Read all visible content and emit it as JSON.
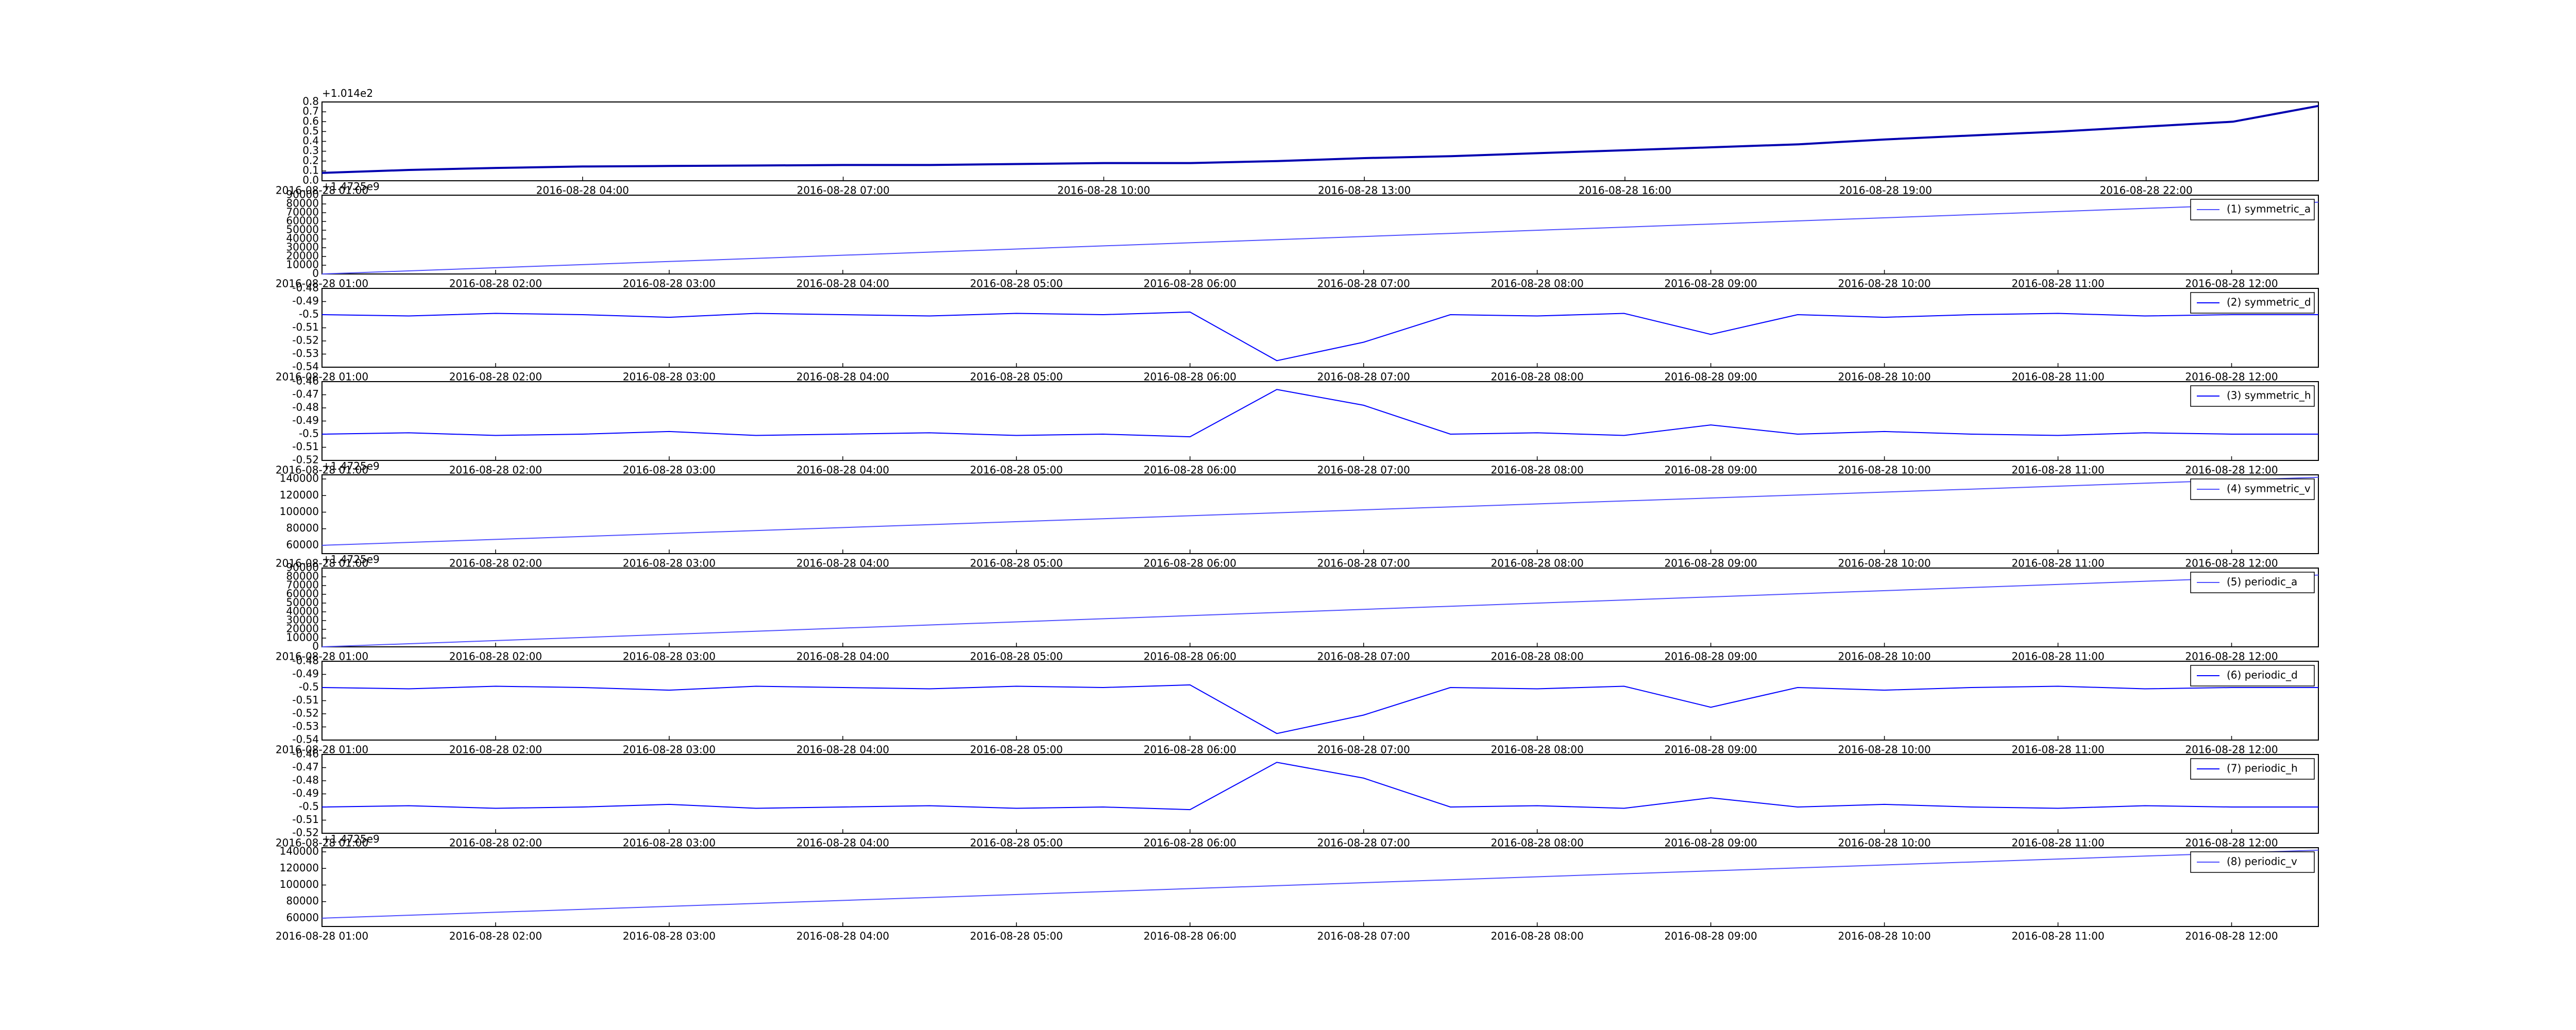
{
  "chart_data": [
    {
      "type": "line",
      "offset_text": "+1.014e2",
      "color": "#0000b0",
      "x": [
        "2016-08-28 01:00",
        "2016-08-28 02:00",
        "2016-08-28 03:00",
        "2016-08-28 04:00",
        "2016-08-28 05:00",
        "2016-08-28 06:00",
        "2016-08-28 07:00",
        "2016-08-28 08:00",
        "2016-08-28 09:00",
        "2016-08-28 10:00",
        "2016-08-28 11:00",
        "2016-08-28 12:00",
        "2016-08-28 13:00",
        "2016-08-28 14:00",
        "2016-08-28 15:00",
        "2016-08-28 16:00",
        "2016-08-28 17:00",
        "2016-08-28 18:00",
        "2016-08-28 19:00",
        "2016-08-28 20:00",
        "2016-08-28 21:00",
        "2016-08-28 22:00",
        "2016-08-28 23:00",
        "2016-08-28 23:59"
      ],
      "values": [
        0.08,
        0.11,
        0.13,
        0.145,
        0.15,
        0.155,
        0.16,
        0.16,
        0.17,
        0.18,
        0.18,
        0.2,
        0.23,
        0.25,
        0.28,
        0.31,
        0.34,
        0.37,
        0.42,
        0.46,
        0.5,
        0.55,
        0.6,
        0.76
      ],
      "xlim": [
        "2016-08-28 01:00",
        "2016-08-28 23:59"
      ],
      "xticks": [
        "2016-08-28 01:00",
        "2016-08-28 04:00",
        "2016-08-28 07:00",
        "2016-08-28 10:00",
        "2016-08-28 13:00",
        "2016-08-28 16:00",
        "2016-08-28 19:00",
        "2016-08-28 22:00"
      ],
      "ylim": [
        0,
        0.8
      ],
      "yticks": [
        {
          "value": 0,
          "label": "0.0"
        },
        0.1,
        0.2,
        0.3,
        0.4,
        0.5,
        0.6,
        0.7,
        0.8
      ]
    },
    {
      "type": "line",
      "offset_text": "+1.4725e9",
      "legend": "upper right",
      "x": [
        "2016-08-28 01:00",
        "2016-08-28 12:30"
      ],
      "series": [
        {
          "name": "(1) symmetric_a",
          "color": "#5050ff",
          "values": [
            0,
            82000
          ]
        }
      ],
      "xlim": [
        "2016-08-28 01:00",
        "2016-08-28 12:30"
      ],
      "xticks": [
        "2016-08-28 01:00",
        "2016-08-28 02:00",
        "2016-08-28 03:00",
        "2016-08-28 04:00",
        "2016-08-28 05:00",
        "2016-08-28 06:00",
        "2016-08-28 07:00",
        "2016-08-28 08:00",
        "2016-08-28 09:00",
        "2016-08-28 10:00",
        "2016-08-28 11:00",
        "2016-08-28 12:00"
      ],
      "ylim": [
        0,
        90000
      ],
      "yticks": [
        0,
        10000,
        20000,
        30000,
        40000,
        50000,
        60000,
        70000,
        80000,
        90000
      ]
    },
    {
      "type": "line",
      "legend": "upper right",
      "x": [
        "2016-08-28 01:00",
        "2016-08-28 01:30",
        "2016-08-28 02:00",
        "2016-08-28 02:30",
        "2016-08-28 03:00",
        "2016-08-28 03:30",
        "2016-08-28 04:00",
        "2016-08-28 04:30",
        "2016-08-28 05:00",
        "2016-08-28 05:30",
        "2016-08-28 06:00",
        "2016-08-28 06:30",
        "2016-08-28 07:00",
        "2016-08-28 07:30",
        "2016-08-28 08:00",
        "2016-08-28 08:30",
        "2016-08-28 09:00",
        "2016-08-28 09:30",
        "2016-08-28 10:00",
        "2016-08-28 10:30",
        "2016-08-28 11:00",
        "2016-08-28 11:30",
        "2016-08-28 12:00",
        "2016-08-28 12:30"
      ],
      "series": [
        {
          "name": "(2) symmetric_d",
          "color": "#0000ff",
          "values": [
            -0.5,
            -0.501,
            -0.499,
            -0.5,
            -0.502,
            -0.499,
            -0.5,
            -0.501,
            -0.499,
            -0.5,
            -0.498,
            -0.535,
            -0.521,
            -0.5,
            -0.501,
            -0.499,
            -0.515,
            -0.5,
            -0.502,
            -0.5,
            -0.499,
            -0.501,
            -0.5,
            -0.5
          ]
        }
      ],
      "xlim": [
        "2016-08-28 01:00",
        "2016-08-28 12:30"
      ],
      "xticks": [
        "2016-08-28 01:00",
        "2016-08-28 02:00",
        "2016-08-28 03:00",
        "2016-08-28 04:00",
        "2016-08-28 05:00",
        "2016-08-28 06:00",
        "2016-08-28 07:00",
        "2016-08-28 08:00",
        "2016-08-28 09:00",
        "2016-08-28 10:00",
        "2016-08-28 11:00",
        "2016-08-28 12:00"
      ],
      "ylim": [
        -0.54,
        -0.48
      ],
      "yticks": [
        -0.54,
        -0.53,
        -0.52,
        -0.51,
        -0.5,
        -0.49,
        -0.48
      ]
    },
    {
      "type": "line",
      "legend": "upper right",
      "x": [
        "2016-08-28 01:00",
        "2016-08-28 01:30",
        "2016-08-28 02:00",
        "2016-08-28 02:30",
        "2016-08-28 03:00",
        "2016-08-28 03:30",
        "2016-08-28 04:00",
        "2016-08-28 04:30",
        "2016-08-28 05:00",
        "2016-08-28 05:30",
        "2016-08-28 06:00",
        "2016-08-28 06:30",
        "2016-08-28 07:00",
        "2016-08-28 07:30",
        "2016-08-28 08:00",
        "2016-08-28 08:30",
        "2016-08-28 09:00",
        "2016-08-28 09:30",
        "2016-08-28 10:00",
        "2016-08-28 10:30",
        "2016-08-28 11:00",
        "2016-08-28 11:30",
        "2016-08-28 12:00",
        "2016-08-28 12:30"
      ],
      "series": [
        {
          "name": "(3) symmetric_h",
          "color": "#0000ff",
          "values": [
            -0.5,
            -0.499,
            -0.501,
            -0.5,
            -0.498,
            -0.501,
            -0.5,
            -0.499,
            -0.501,
            -0.5,
            -0.502,
            -0.466,
            -0.478,
            -0.5,
            -0.499,
            -0.501,
            -0.493,
            -0.5,
            -0.498,
            -0.5,
            -0.501,
            -0.499,
            -0.5,
            -0.5
          ]
        }
      ],
      "xlim": [
        "2016-08-28 01:00",
        "2016-08-28 12:30"
      ],
      "xticks": [
        "2016-08-28 01:00",
        "2016-08-28 02:00",
        "2016-08-28 03:00",
        "2016-08-28 04:00",
        "2016-08-28 05:00",
        "2016-08-28 06:00",
        "2016-08-28 07:00",
        "2016-08-28 08:00",
        "2016-08-28 09:00",
        "2016-08-28 10:00",
        "2016-08-28 11:00",
        "2016-08-28 12:00"
      ],
      "ylim": [
        -0.52,
        -0.46
      ],
      "yticks": [
        -0.52,
        -0.51,
        -0.5,
        -0.49,
        -0.48,
        -0.47,
        -0.46
      ]
    },
    {
      "type": "line",
      "offset_text": "+1.4725e9",
      "legend": "upper right",
      "x": [
        "2016-08-28 01:00",
        "2016-08-28 12:30"
      ],
      "series": [
        {
          "name": "(4) symmetric_v",
          "color": "#5050ff",
          "values": [
            60000,
            142000
          ]
        }
      ],
      "xlim": [
        "2016-08-28 01:00",
        "2016-08-28 12:30"
      ],
      "xticks": [
        "2016-08-28 01:00",
        "2016-08-28 02:00",
        "2016-08-28 03:00",
        "2016-08-28 04:00",
        "2016-08-28 05:00",
        "2016-08-28 06:00",
        "2016-08-28 07:00",
        "2016-08-28 08:00",
        "2016-08-28 09:00",
        "2016-08-28 10:00",
        "2016-08-28 11:00",
        "2016-08-28 12:00"
      ],
      "ylim": [
        50000,
        145000
      ],
      "yticks": [
        60000,
        80000,
        100000,
        120000,
        140000
      ]
    },
    {
      "type": "line",
      "offset_text": "+1.4725e9",
      "legend": "upper right",
      "x": [
        "2016-08-28 01:00",
        "2016-08-28 12:30"
      ],
      "series": [
        {
          "name": "(5) periodic_a",
          "color": "#5050ff",
          "values": [
            0,
            82000
          ]
        }
      ],
      "xlim": [
        "2016-08-28 01:00",
        "2016-08-28 12:30"
      ],
      "xticks": [
        "2016-08-28 01:00",
        "2016-08-28 02:00",
        "2016-08-28 03:00",
        "2016-08-28 04:00",
        "2016-08-28 05:00",
        "2016-08-28 06:00",
        "2016-08-28 07:00",
        "2016-08-28 08:00",
        "2016-08-28 09:00",
        "2016-08-28 10:00",
        "2016-08-28 11:00",
        "2016-08-28 12:00"
      ],
      "ylim": [
        0,
        90000
      ],
      "yticks": [
        0,
        10000,
        20000,
        30000,
        40000,
        50000,
        60000,
        70000,
        80000,
        90000
      ]
    },
    {
      "type": "line",
      "legend": "upper right",
      "x": [
        "2016-08-28 01:00",
        "2016-08-28 01:30",
        "2016-08-28 02:00",
        "2016-08-28 02:30",
        "2016-08-28 03:00",
        "2016-08-28 03:30",
        "2016-08-28 04:00",
        "2016-08-28 04:30",
        "2016-08-28 05:00",
        "2016-08-28 05:30",
        "2016-08-28 06:00",
        "2016-08-28 06:30",
        "2016-08-28 07:00",
        "2016-08-28 07:30",
        "2016-08-28 08:00",
        "2016-08-28 08:30",
        "2016-08-28 09:00",
        "2016-08-28 09:30",
        "2016-08-28 10:00",
        "2016-08-28 10:30",
        "2016-08-28 11:00",
        "2016-08-28 11:30",
        "2016-08-28 12:00",
        "2016-08-28 12:30"
      ],
      "series": [
        {
          "name": "(6) periodic_d",
          "color": "#0000ff",
          "values": [
            -0.5,
            -0.501,
            -0.499,
            -0.5,
            -0.502,
            -0.499,
            -0.5,
            -0.501,
            -0.499,
            -0.5,
            -0.498,
            -0.535,
            -0.521,
            -0.5,
            -0.501,
            -0.499,
            -0.515,
            -0.5,
            -0.502,
            -0.5,
            -0.499,
            -0.501,
            -0.5,
            -0.5
          ]
        }
      ],
      "xlim": [
        "2016-08-28 01:00",
        "2016-08-28 12:30"
      ],
      "xticks": [
        "2016-08-28 01:00",
        "2016-08-28 02:00",
        "2016-08-28 03:00",
        "2016-08-28 04:00",
        "2016-08-28 05:00",
        "2016-08-28 06:00",
        "2016-08-28 07:00",
        "2016-08-28 08:00",
        "2016-08-28 09:00",
        "2016-08-28 10:00",
        "2016-08-28 11:00",
        "2016-08-28 12:00"
      ],
      "ylim": [
        -0.54,
        -0.48
      ],
      "yticks": [
        -0.54,
        -0.53,
        -0.52,
        -0.51,
        -0.5,
        -0.49,
        -0.48
      ]
    },
    {
      "type": "line",
      "legend": "upper right",
      "x": [
        "2016-08-28 01:00",
        "2016-08-28 01:30",
        "2016-08-28 02:00",
        "2016-08-28 02:30",
        "2016-08-28 03:00",
        "2016-08-28 03:30",
        "2016-08-28 04:00",
        "2016-08-28 04:30",
        "2016-08-28 05:00",
        "2016-08-28 05:30",
        "2016-08-28 06:00",
        "2016-08-28 06:30",
        "2016-08-28 07:00",
        "2016-08-28 07:30",
        "2016-08-28 08:00",
        "2016-08-28 08:30",
        "2016-08-28 09:00",
        "2016-08-28 09:30",
        "2016-08-28 10:00",
        "2016-08-28 10:30",
        "2016-08-28 11:00",
        "2016-08-28 11:30",
        "2016-08-28 12:00",
        "2016-08-28 12:30"
      ],
      "series": [
        {
          "name": "(7) periodic_h",
          "color": "#0000ff",
          "values": [
            -0.5,
            -0.499,
            -0.501,
            -0.5,
            -0.498,
            -0.501,
            -0.5,
            -0.499,
            -0.501,
            -0.5,
            -0.502,
            -0.466,
            -0.478,
            -0.5,
            -0.499,
            -0.501,
            -0.493,
            -0.5,
            -0.498,
            -0.5,
            -0.501,
            -0.499,
            -0.5,
            -0.5
          ]
        }
      ],
      "xlim": [
        "2016-08-28 01:00",
        "2016-08-28 12:30"
      ],
      "xticks": [
        "2016-08-28 01:00",
        "2016-08-28 02:00",
        "2016-08-28 03:00",
        "2016-08-28 04:00",
        "2016-08-28 05:00",
        "2016-08-28 06:00",
        "2016-08-28 07:00",
        "2016-08-28 08:00",
        "2016-08-28 09:00",
        "2016-08-28 10:00",
        "2016-08-28 11:00",
        "2016-08-28 12:00"
      ],
      "ylim": [
        -0.52,
        -0.46
      ],
      "yticks": [
        -0.52,
        -0.51,
        -0.5,
        -0.49,
        -0.48,
        -0.47,
        -0.46
      ]
    },
    {
      "type": "line",
      "offset_text": "+1.4725e9",
      "legend": "upper right",
      "x": [
        "2016-08-28 01:00",
        "2016-08-28 12:30"
      ],
      "series": [
        {
          "name": "(8) periodic_v",
          "color": "#5050ff",
          "values": [
            60000,
            142000
          ]
        }
      ],
      "xlim": [
        "2016-08-28 01:00",
        "2016-08-28 12:30"
      ],
      "xticks": [
        "2016-08-28 01:00",
        "2016-08-28 02:00",
        "2016-08-28 03:00",
        "2016-08-28 04:00",
        "2016-08-28 05:00",
        "2016-08-28 06:00",
        "2016-08-28 07:00",
        "2016-08-28 08:00",
        "2016-08-28 09:00",
        "2016-08-28 10:00",
        "2016-08-28 11:00",
        "2016-08-28 12:00"
      ],
      "ylim": [
        50000,
        145000
      ],
      "yticks": [
        60000,
        80000,
        100000,
        120000,
        140000
      ]
    }
  ]
}
